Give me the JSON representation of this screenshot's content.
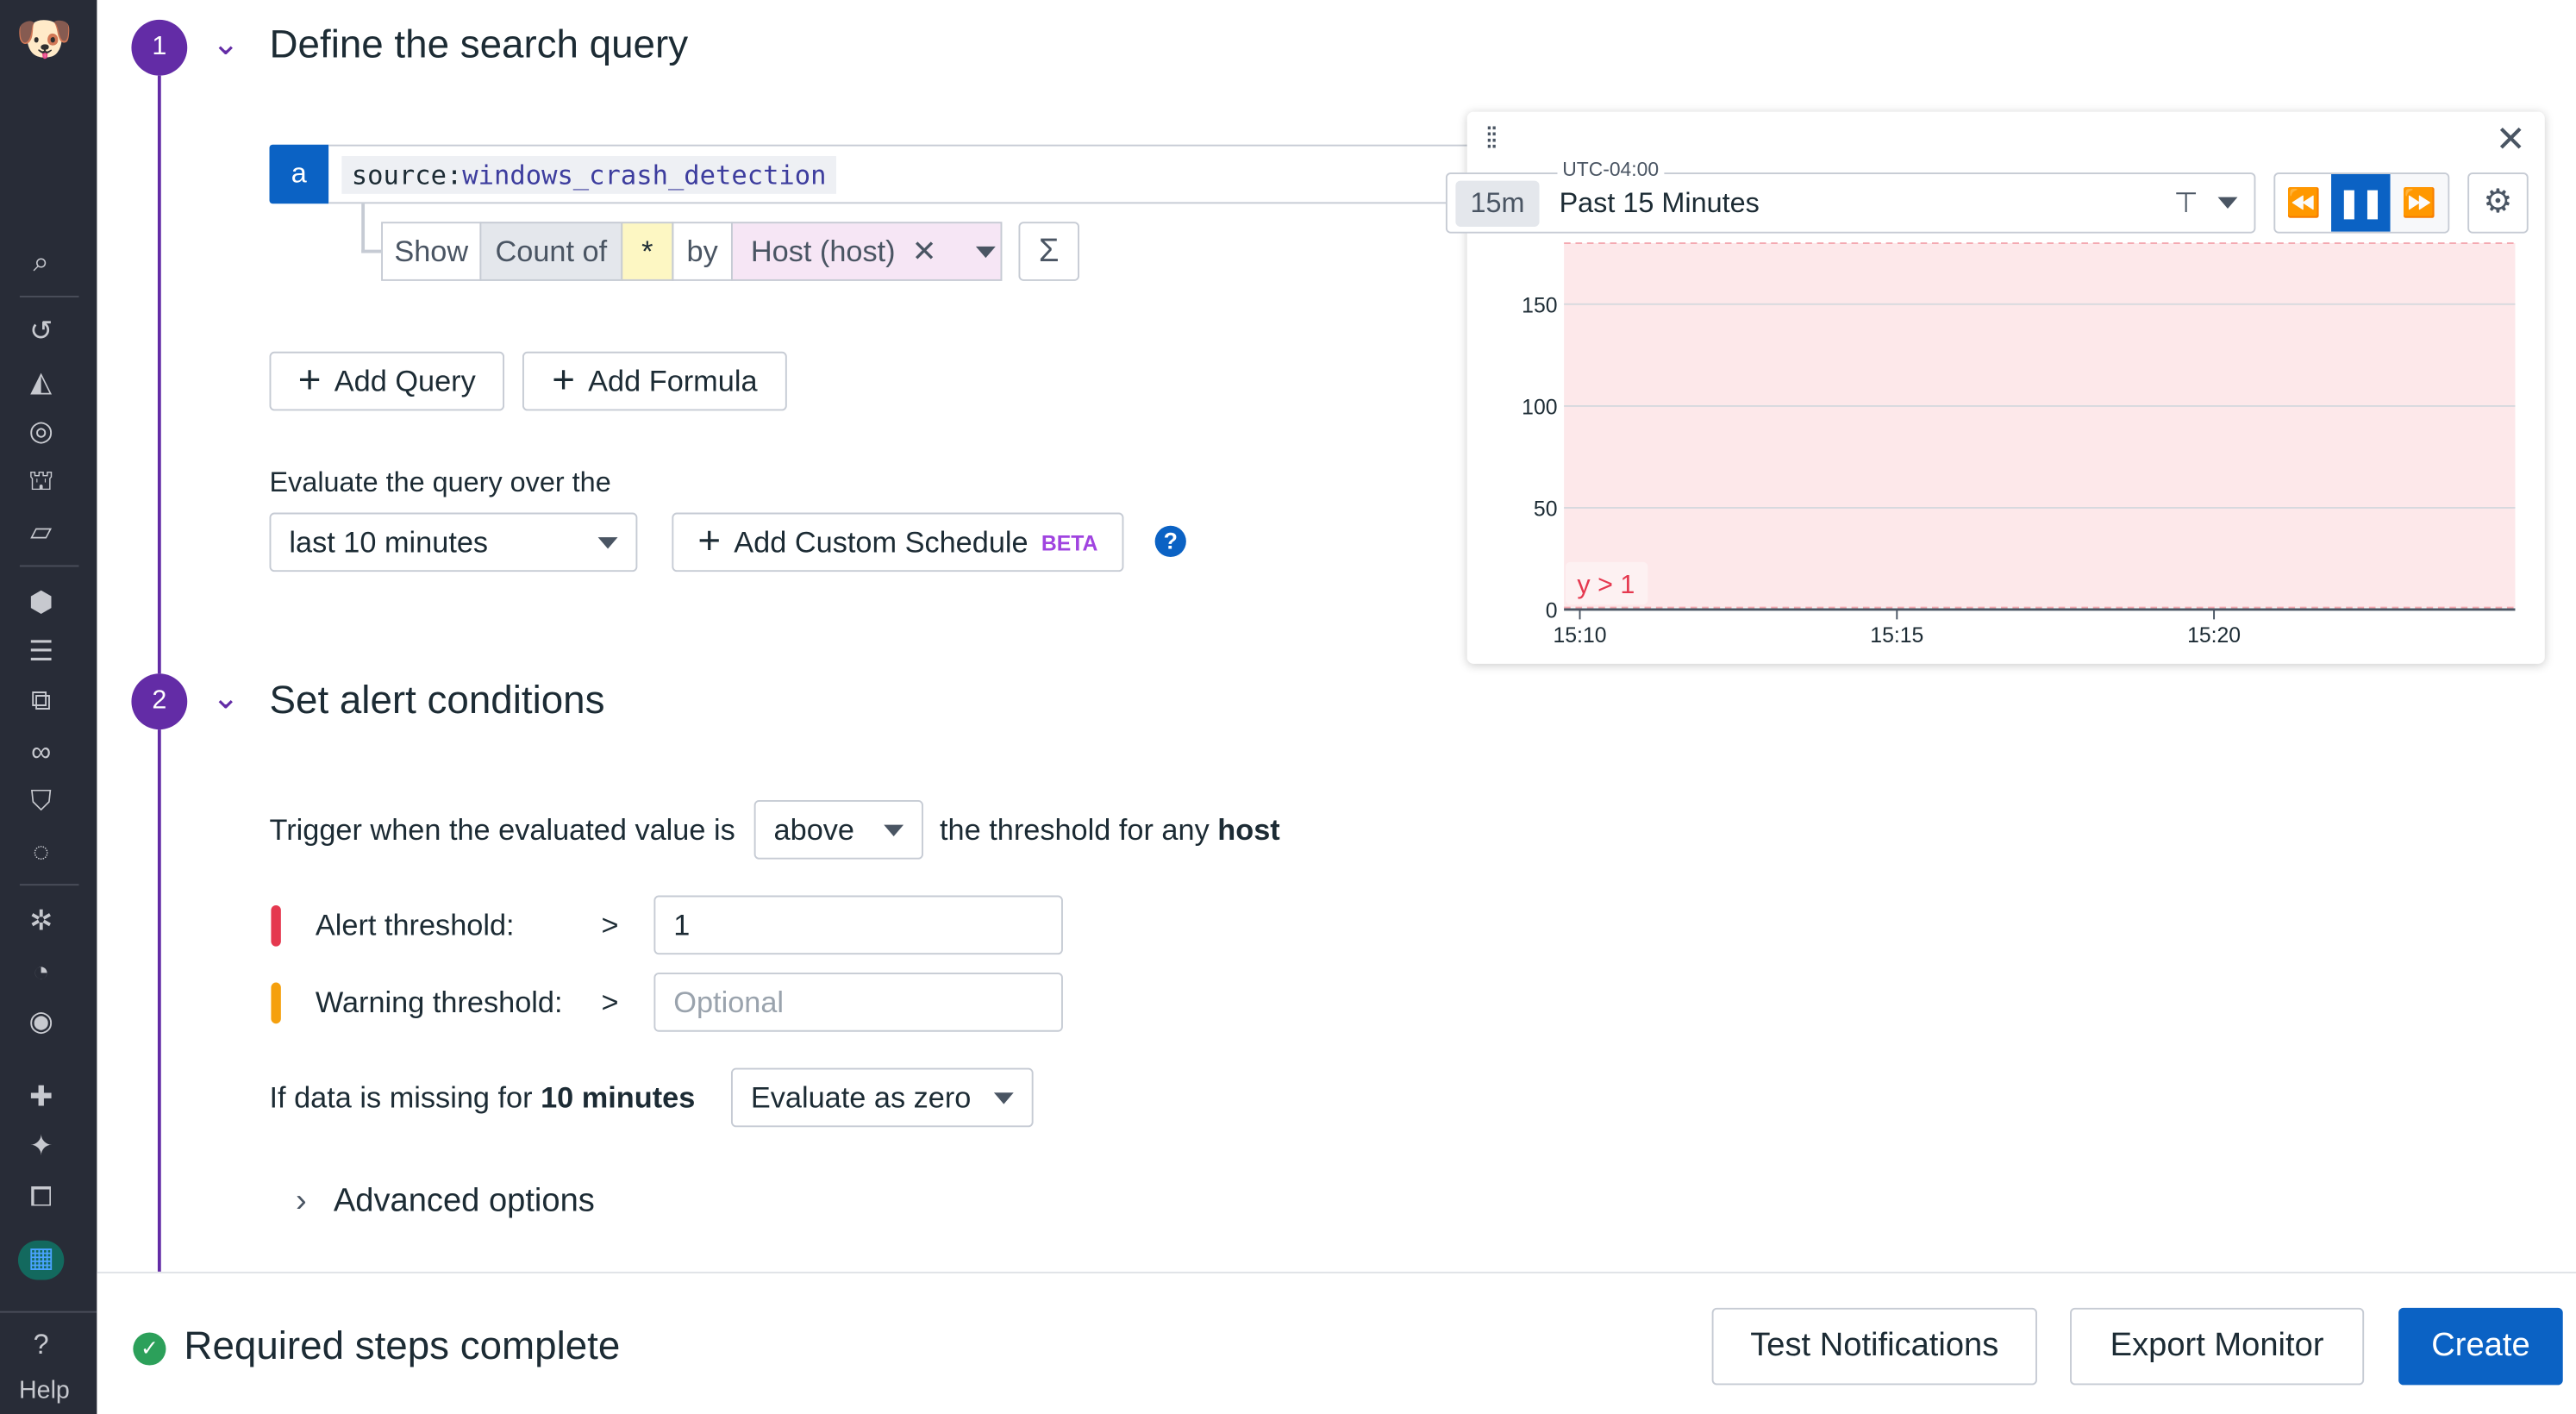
{
  "sidebar": {
    "items": [
      "search-icon",
      "history-icon",
      "dashboards-icon",
      "monitors-icon",
      "watchdog-icon",
      "integrations-icon",
      "infrastructure-icon",
      "logs-icon",
      "apm-icon",
      "synthetics-icon",
      "security-icon",
      "rum-icon",
      "bug-icon",
      "performance-icon",
      "observability-icon",
      "puzzle-icon",
      "sparkle-icon",
      "notebooks-icon",
      "org-icon"
    ],
    "help_label": "Help"
  },
  "step1": {
    "number": "1",
    "title": "Define the search query",
    "query": {
      "letter": "a",
      "source_key": "source",
      "source_value": "windows_crash_detection"
    },
    "show_label": "Show",
    "count_of": "Count of",
    "measure": "*",
    "by_label": "by",
    "group": "Host (host)",
    "sigma": "Σ",
    "add_query": "Add Query",
    "add_formula": "Add Formula",
    "evaluate_label": "Evaluate the query over the",
    "evaluate_value": "last 10 minutes",
    "custom_schedule": "Add Custom Schedule",
    "beta": "BETA",
    "help": "?"
  },
  "step2": {
    "number": "2",
    "title": "Set alert conditions",
    "trigger_prefix": "Trigger when the evaluated value is",
    "trigger_value": "above",
    "trigger_suffix": "the threshold for any",
    "trigger_group": "host",
    "alert_label": "Alert threshold:",
    "alert_op": ">",
    "alert_value": "1",
    "warning_label": "Warning threshold:",
    "warning_op": ">",
    "warning_placeholder": "Optional",
    "missing_prefix": "If data is missing for",
    "missing_duration": "10 minutes",
    "missing_value": "Evaluate as zero",
    "advanced": "Advanced options",
    "colors": {
      "alert": "#e5384f",
      "warning": "#f5a00e"
    }
  },
  "footer": {
    "status": "Required steps complete",
    "test": "Test Notifications",
    "export": "Export Monitor",
    "create": "Create"
  },
  "preview": {
    "timezone": "UTC-04:00",
    "chip": "15m",
    "range": "Past 15 Minutes"
  },
  "chart_data": {
    "type": "line",
    "series": [],
    "ylim": [
      0,
      180
    ],
    "yticks": [
      "0",
      "50",
      "100",
      "150"
    ],
    "xticks": [
      "15:10",
      "15:15",
      "15:20"
    ],
    "xlim": [
      "15:09:45",
      "15:24:45"
    ],
    "grid": true,
    "threshold": {
      "label": "y > 1",
      "value": 1,
      "color": "#fde8ea"
    }
  },
  "colors": {
    "accent": "#632ca6",
    "primary": "#0b62c4",
    "sidebar": "#282c37"
  }
}
